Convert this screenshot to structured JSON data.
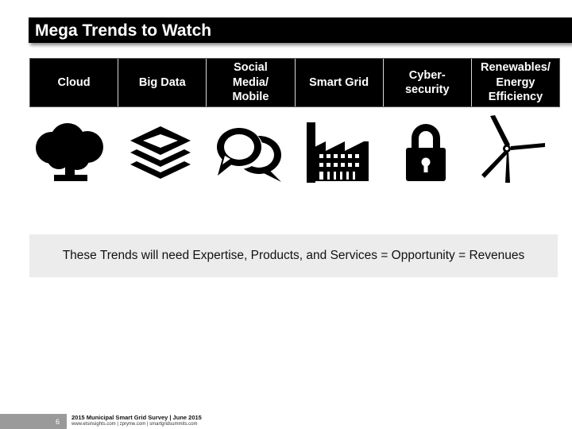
{
  "slide": {
    "title": "Mega Trends to Watch",
    "trends": [
      {
        "label": "Cloud",
        "icon": "tree-cloud-icon"
      },
      {
        "label": "Big Data",
        "icon": "layers-stack-icon"
      },
      {
        "label": "Social\nMedia/\nMobile",
        "icon": "speech-bubbles-icon"
      },
      {
        "label": "Smart Grid",
        "icon": "factory-icon"
      },
      {
        "label": "Cyber-\nsecurity",
        "icon": "padlock-icon"
      },
      {
        "label": "Renewables/\nEnergy\nEfficiency",
        "icon": "wind-turbine-icon"
      }
    ],
    "banner_text": "These Trends will need Expertise, Products, and Services = Opportunity = Revenues"
  },
  "footer": {
    "page_number": "6",
    "survey_title": "2015 Municipal Smart Grid Survey | June 2015",
    "links": "www.etsinsights.com | zpryme.com | smartgridsummits.com"
  },
  "colors": {
    "header_background": "#000000",
    "banner_background": "#ececec",
    "footer_grey": "#9a9a9a"
  }
}
